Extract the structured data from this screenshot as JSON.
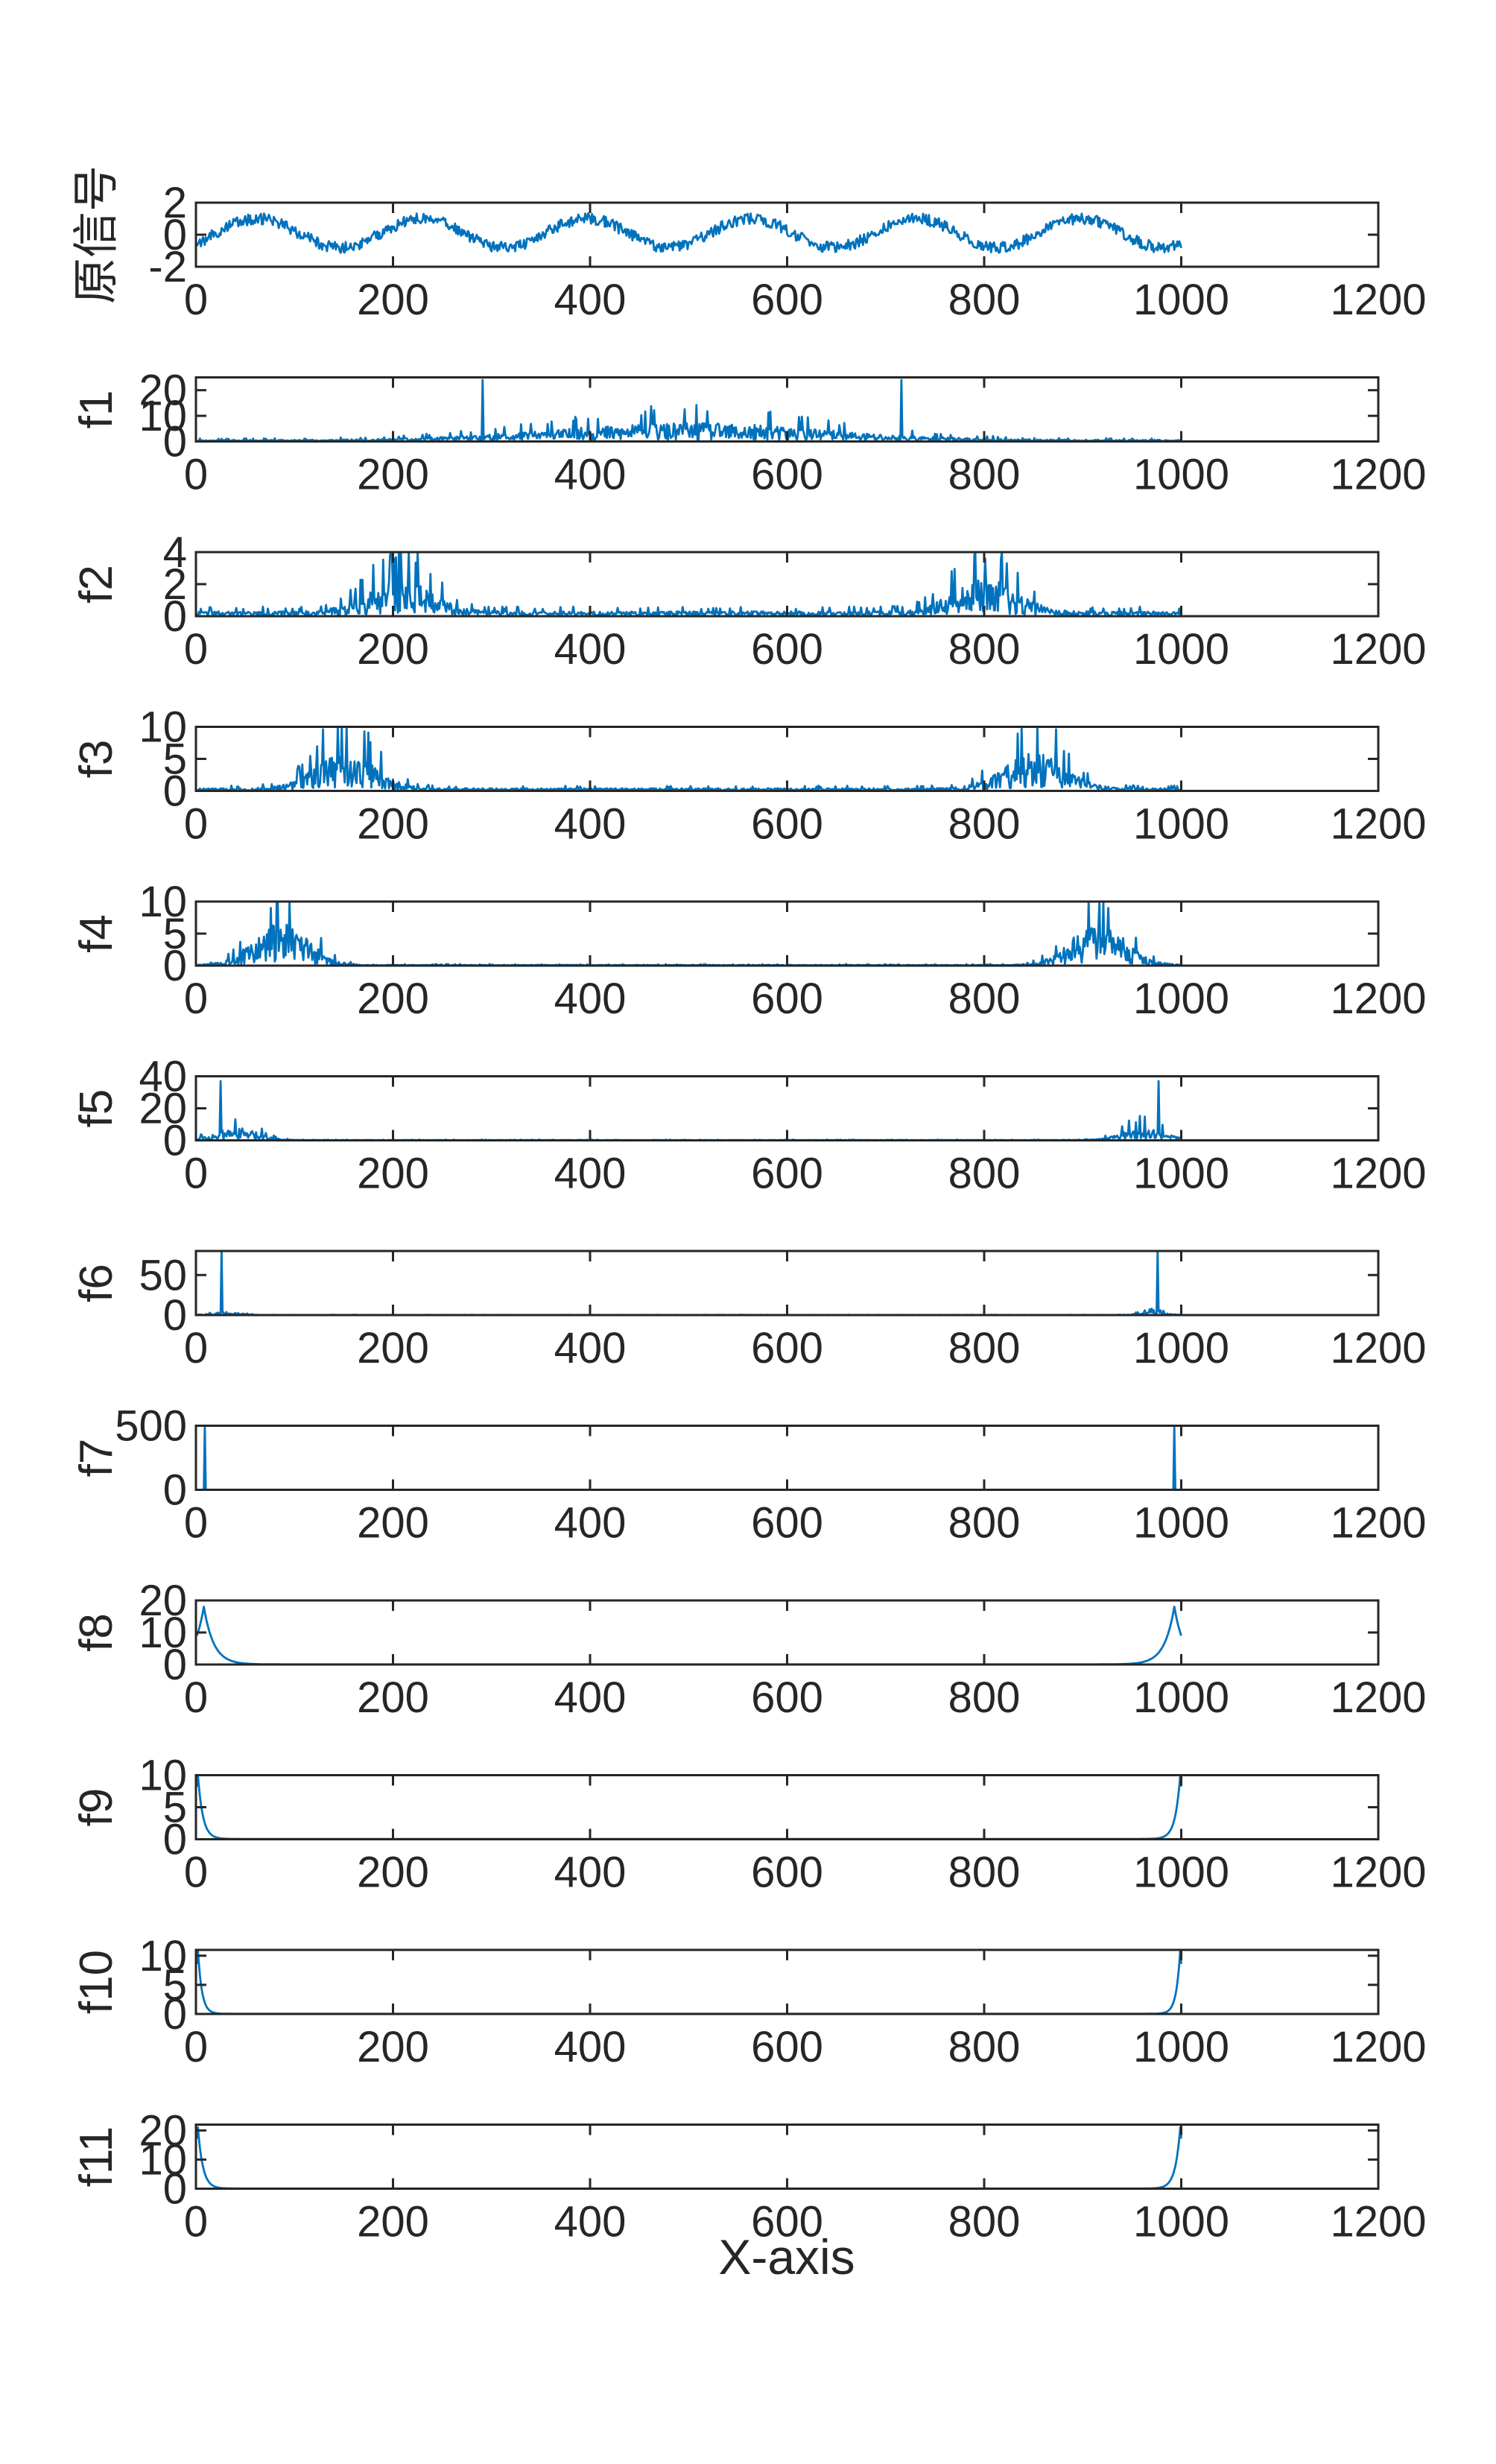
{
  "figure": {
    "xlabel": "X-axis",
    "line_color": "#0072BD",
    "axes_color": "#262626"
  },
  "chart_data": [
    {
      "type": "line",
      "ylabel": "原信号",
      "xlim": [
        0,
        1200
      ],
      "ylim": [
        -2,
        2
      ],
      "xticks": [
        "0",
        "200",
        "400",
        "600",
        "800",
        "1000",
        "1200"
      ],
      "yticks": [
        "-2",
        "0",
        "2"
      ],
      "grid": false,
      "signal": {
        "kind": "time",
        "n": 1000,
        "period": 167,
        "amplitude": 0.9,
        "offset": 0.1,
        "noise": 0.35,
        "seed": 1
      }
    },
    {
      "type": "line",
      "ylabel": "f1",
      "xlim": [
        0,
        1200
      ],
      "ylim": [
        0,
        25
      ],
      "xticks": [
        "0",
        "200",
        "400",
        "600",
        "800",
        "1000",
        "1200"
      ],
      "yticks": [
        "0",
        "10",
        "20"
      ],
      "grid": false,
      "signal": {
        "kind": "spectrum",
        "n": 1000,
        "seed": 11,
        "base": 0.5,
        "noise_scale": 1.0,
        "bumps": [
          {
            "center": 500,
            "width": 190,
            "height": 5.5
          }
        ],
        "spikes": [
          {
            "x": 290,
            "y": 24
          },
          {
            "x": 715,
            "y": 24
          }
        ]
      }
    },
    {
      "type": "line",
      "ylabel": "f2",
      "xlim": [
        0,
        1200
      ],
      "ylim": [
        0,
        4
      ],
      "xticks": [
        "0",
        "200",
        "400",
        "600",
        "800",
        "1000",
        "1200"
      ],
      "yticks": [
        "0",
        "2",
        "4"
      ],
      "grid": false,
      "signal": {
        "kind": "spectrum",
        "n": 1000,
        "seed": 22,
        "base": 0.25,
        "noise_scale": 1.0,
        "bumps": [
          {
            "center": 205,
            "width": 45,
            "height": 1.7
          },
          {
            "center": 800,
            "width": 45,
            "height": 1.7
          }
        ],
        "spikes": [
          {
            "x": 200,
            "y": 3.6
          },
          {
            "x": 800,
            "y": 3.6
          }
        ]
      }
    },
    {
      "type": "line",
      "ylabel": "f3",
      "xlim": [
        0,
        1200
      ],
      "ylim": [
        0,
        10
      ],
      "xticks": [
        "0",
        "200",
        "400",
        "600",
        "800",
        "1000",
        "1200"
      ],
      "yticks": [
        "0",
        "5",
        "10"
      ],
      "grid": false,
      "signal": {
        "kind": "spectrum",
        "n": 1000,
        "seed": 33,
        "base": 0.35,
        "noise_scale": 1.0,
        "bumps": [
          {
            "center": 150,
            "width": 42,
            "height": 4.8
          },
          {
            "center": 850,
            "width": 42,
            "height": 4.8
          }
        ],
        "spikes": [
          {
            "x": 128,
            "y": 9.6
          },
          {
            "x": 872,
            "y": 9.6
          }
        ]
      }
    },
    {
      "type": "line",
      "ylabel": "f4",
      "xlim": [
        0,
        1200
      ],
      "ylim": [
        0,
        10
      ],
      "xticks": [
        "0",
        "200",
        "400",
        "600",
        "800",
        "1000",
        "1200"
      ],
      "yticks": [
        "0",
        "5",
        "10"
      ],
      "grid": false,
      "signal": {
        "kind": "spectrum",
        "n": 1000,
        "seed": 44,
        "base": 0.1,
        "noise_scale": 1.0,
        "bumps": [
          {
            "center": 85,
            "width": 38,
            "height": 5.5
          },
          {
            "center": 915,
            "width": 38,
            "height": 5.5
          }
        ],
        "spikes": [
          {
            "x": 75,
            "y": 9.0
          },
          {
            "x": 925,
            "y": 9.0
          }
        ]
      }
    },
    {
      "type": "line",
      "ylabel": "f5",
      "xlim": [
        0,
        1200
      ],
      "ylim": [
        0,
        40
      ],
      "xticks": [
        "0",
        "200",
        "400",
        "600",
        "800",
        "1000",
        "1200"
      ],
      "yticks": [
        "0",
        "20",
        "40"
      ],
      "grid": false,
      "signal": {
        "kind": "spectrum",
        "n": 1000,
        "seed": 55,
        "base": 0.2,
        "noise_scale": 0.9,
        "bumps": [
          {
            "center": 40,
            "width": 30,
            "height": 7
          },
          {
            "center": 960,
            "width": 30,
            "height": 7
          }
        ],
        "spikes": [
          {
            "x": 24,
            "y": 37
          },
          {
            "x": 976,
            "y": 37
          }
        ]
      }
    },
    {
      "type": "line",
      "ylabel": "f6",
      "xlim": [
        0,
        1200
      ],
      "ylim": [
        0,
        80
      ],
      "xticks": [
        "0",
        "200",
        "400",
        "600",
        "800",
        "1000",
        "1200"
      ],
      "yticks": [
        "0",
        "50"
      ],
      "grid": false,
      "signal": {
        "kind": "spectrum",
        "n": 1000,
        "seed": 66,
        "base": 0.2,
        "noise_scale": 0.8,
        "bumps": [
          {
            "center": 30,
            "width": 18,
            "height": 4
          },
          {
            "center": 970,
            "width": 18,
            "height": 4
          }
        ],
        "spikes": [
          {
            "x": 25,
            "y": 80
          },
          {
            "x": 975,
            "y": 80
          }
        ]
      }
    },
    {
      "type": "line",
      "ylabel": "f7",
      "xlim": [
        0,
        1200
      ],
      "ylim": [
        0,
        500
      ],
      "xticks": [
        "0",
        "200",
        "400",
        "600",
        "800",
        "1000",
        "1200"
      ],
      "yticks": [
        "0",
        "500"
      ],
      "grid": false,
      "signal": {
        "kind": "spectrum",
        "n": 1000,
        "seed": 77,
        "base": 0.5,
        "noise_scale": 0.5,
        "bumps": [],
        "spikes": [
          {
            "x": 8,
            "y": 500
          },
          {
            "x": 992,
            "y": 500
          }
        ]
      }
    },
    {
      "type": "line",
      "ylabel": "f8",
      "xlim": [
        0,
        1200
      ],
      "ylim": [
        0,
        20
      ],
      "xticks": [
        "0",
        "200",
        "400",
        "600",
        "800",
        "1000",
        "1200"
      ],
      "yticks": [
        "0",
        "10",
        "20"
      ],
      "grid": false,
      "signal": {
        "kind": "edges",
        "n": 1000,
        "peak": 18,
        "peak_at": 7,
        "decay": 10,
        "floor": 0.05
      }
    },
    {
      "type": "line",
      "ylabel": "f9",
      "xlim": [
        0,
        1200
      ],
      "ylim": [
        0,
        10
      ],
      "xticks": [
        "0",
        "200",
        "400",
        "600",
        "800",
        "1000",
        "1200"
      ],
      "yticks": [
        "0",
        "5",
        "10"
      ],
      "grid": false,
      "signal": {
        "kind": "edges",
        "n": 1000,
        "peak": 10,
        "peak_at": 1,
        "decay": 5,
        "floor": 0.05
      }
    },
    {
      "type": "line",
      "ylabel": "f10",
      "xlim": [
        0,
        1200
      ],
      "ylim": [
        0,
        11
      ],
      "xticks": [
        "0",
        "200",
        "400",
        "600",
        "800",
        "1000",
        "1200"
      ],
      "yticks": [
        "0",
        "5",
        "10"
      ],
      "grid": false,
      "signal": {
        "kind": "edges",
        "n": 1000,
        "peak": 11,
        "peak_at": 1,
        "decay": 4,
        "floor": 0.03
      }
    },
    {
      "type": "line",
      "ylabel": "f11",
      "xlim": [
        0,
        1200
      ],
      "ylim": [
        0,
        22
      ],
      "xticks": [
        "0",
        "200",
        "400",
        "600",
        "800",
        "1000",
        "1200"
      ],
      "yticks": [
        "0",
        "10",
        "20"
      ],
      "grid": false,
      "signal": {
        "kind": "edges",
        "n": 1000,
        "peak": 21,
        "peak_at": 1,
        "decay": 5,
        "floor": 0.05
      }
    }
  ]
}
